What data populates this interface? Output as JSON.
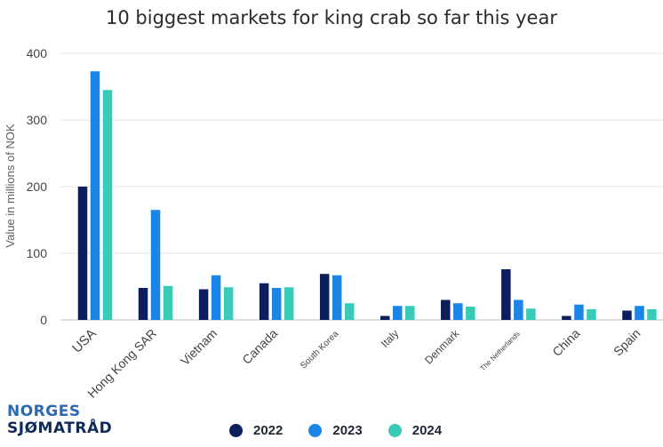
{
  "logo": {
    "line1": "NORGES",
    "line2": "SJØMATRÅD"
  },
  "chart_data": {
    "type": "bar",
    "title": "10 biggest markets for king crab so far this year",
    "xlabel": "",
    "ylabel": "Value in millions of NOK",
    "ylim": [
      0,
      400
    ],
    "yticks": [
      "0",
      "100",
      "200",
      "300",
      "400"
    ],
    "grid": true,
    "legend_position": "bottom",
    "categories": [
      "USA",
      "Hong Kong SAR",
      "Vietnam",
      "Canada",
      "South Korea",
      "Italy",
      "Denmark",
      "The Netherlands",
      "China",
      "Spain"
    ],
    "series": [
      {
        "name": "2022",
        "color": "#0c1f5c",
        "values": [
          200,
          48,
          46,
          55,
          69,
          6,
          30,
          76,
          6,
          14
        ]
      },
      {
        "name": "2023",
        "color": "#1a85e6",
        "values": [
          373,
          165,
          67,
          48,
          67,
          21,
          25,
          30,
          23,
          21
        ]
      },
      {
        "name": "2024",
        "color": "#38cbb8",
        "values": [
          345,
          51,
          49,
          49,
          25,
          21,
          20,
          17,
          16,
          16
        ]
      }
    ]
  }
}
